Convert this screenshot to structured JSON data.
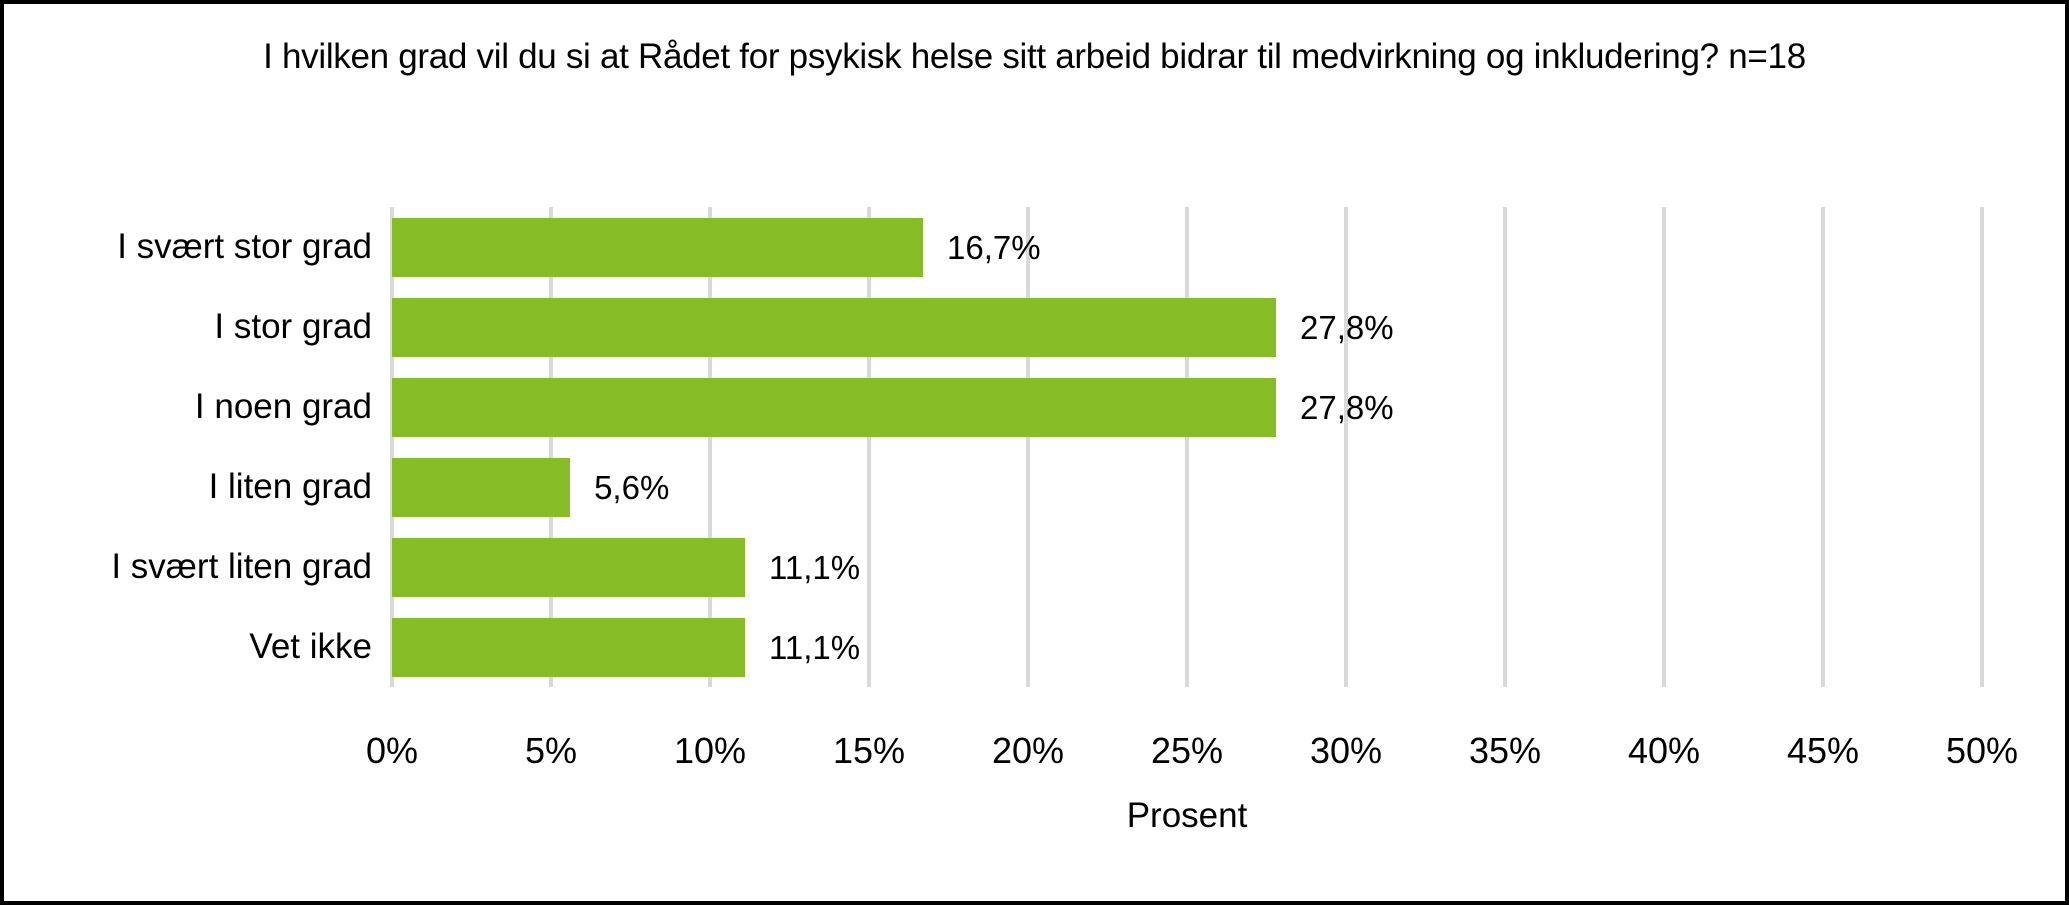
{
  "chart_data": {
    "type": "bar",
    "orientation": "horizontal",
    "title": "I hvilken grad vil du si at Rådet for psykisk helse sitt arbeid bidrar til medvirkning og inkludering? n=18",
    "categories": [
      "I svært stor grad",
      "I stor grad",
      "I noen grad",
      "I liten grad",
      "I svært liten grad",
      "Vet ikke"
    ],
    "values": [
      16.7,
      27.8,
      27.8,
      5.6,
      11.1,
      11.1
    ],
    "value_labels": [
      "16,7%",
      "27,8%",
      "27,8%",
      "5,6%",
      "11,1%",
      "11,1%"
    ],
    "xlabel": "Prosent",
    "xlim": [
      0,
      50
    ],
    "x_tick_values": [
      0,
      5,
      10,
      15,
      20,
      25,
      30,
      35,
      40,
      45,
      50
    ],
    "x_tick_labels": [
      "0%",
      "5%",
      "10%",
      "15%",
      "20%",
      "25%",
      "30%",
      "35%",
      "40%",
      "45%",
      "50%"
    ],
    "grid": true,
    "legend": false,
    "colors": {
      "bar": "#86BC25",
      "gridline": "#D9D9D9",
      "text": "#000000",
      "background": "#FFFFFF",
      "border": "#000000"
    }
  }
}
